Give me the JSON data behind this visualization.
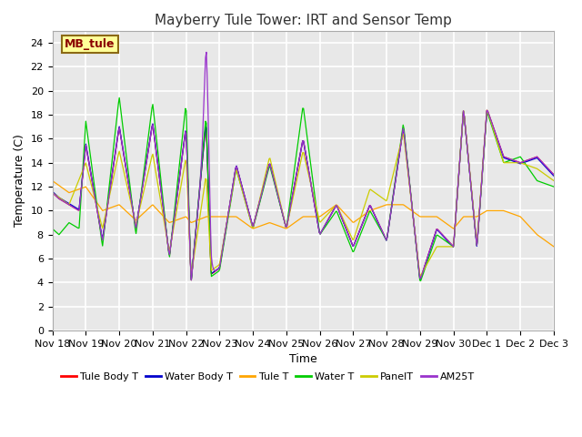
{
  "title": "Mayberry Tule Tower: IRT and Sensor Temp",
  "xlabel": "Time",
  "ylabel": "Temperature (C)",
  "ylim": [
    0,
    25
  ],
  "yticks": [
    0,
    2,
    4,
    6,
    8,
    10,
    12,
    14,
    16,
    18,
    20,
    22,
    24
  ],
  "xtick_labels": [
    "Nov 18",
    "Nov 19",
    "Nov 20",
    "Nov 21",
    "Nov 22",
    "Nov 23",
    "Nov 24",
    "Nov 25",
    "Nov 26",
    "Nov 27",
    "Nov 28",
    "Nov 29",
    "Nov 30",
    "Dec 1",
    "Dec 2",
    "Dec 3"
  ],
  "annotation_text": "MB_tule",
  "annotation_color": "#8B0000",
  "annotation_bg": "#FFFF99",
  "annotation_border": "#8B6914",
  "legend_labels": [
    "Tule Body T",
    "Water Body T",
    "Tule T",
    "Water T",
    "PanelT",
    "AM25T"
  ],
  "line_colors": [
    "#FF0000",
    "#0000CC",
    "#FFA500",
    "#00CC00",
    "#CCCC00",
    "#9933CC"
  ],
  "bg_color": "#E8E8E8",
  "grid_color": "#FFFFFF",
  "title_fontsize": 11,
  "axis_fontsize": 9,
  "tick_fontsize": 8
}
